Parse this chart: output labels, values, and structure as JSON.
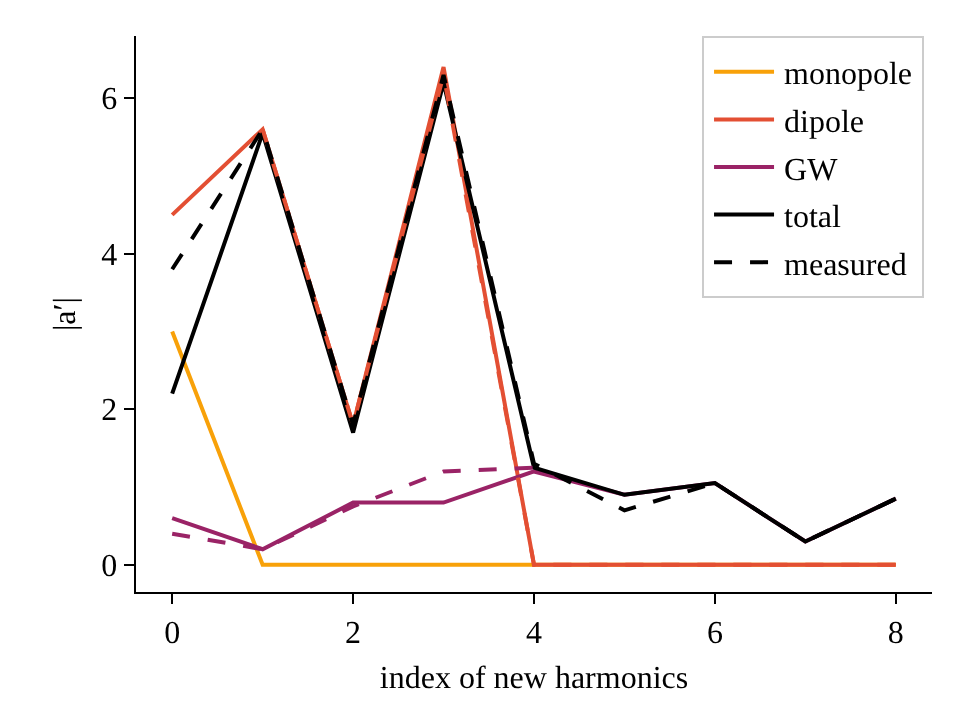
{
  "chart_data": {
    "type": "line",
    "xlabel": "index of new harmonics",
    "ylabel": "|a′|",
    "x": [
      0,
      1,
      2,
      3,
      4,
      5,
      6,
      7,
      8
    ],
    "series": [
      {
        "name": "monopole",
        "color": "#f8a109",
        "values": [
          3.0,
          0,
          0,
          0,
          0,
          0,
          0,
          0,
          0
        ]
      },
      {
        "name": "dipole",
        "color": "#e34f33",
        "values": [
          4.5,
          5.6,
          1.8,
          6.4,
          0,
          0,
          0,
          0,
          0
        ]
      },
      {
        "name": "GW",
        "color": "#9a2366",
        "values": [
          0.6,
          0.2,
          0.8,
          0.8,
          1.2,
          0.9,
          1.05,
          0.3,
          0.85
        ]
      },
      {
        "name": "total",
        "color": "#000000",
        "values": [
          2.2,
          5.55,
          1.7,
          6.2,
          1.25,
          0.9,
          1.05,
          0.3,
          0.85
        ]
      },
      {
        "color": "#e34f33",
        "line_style": "dashed",
        "values": [
          null,
          5.6,
          1.8,
          6.3,
          0,
          0,
          0,
          0,
          0
        ]
      },
      {
        "color": "#9a2366",
        "line_style": "dashed",
        "values": [
          0.4,
          0.2,
          0.75,
          1.2,
          1.25,
          null,
          null,
          null,
          null
        ]
      },
      {
        "name": "measured",
        "color": "#000000",
        "line_style": "dashed",
        "values": [
          3.8,
          5.6,
          1.8,
          6.3,
          1.3,
          0.7,
          1.05,
          0.3,
          0.85
        ]
      }
    ],
    "xlim": [
      -0.4,
      8.4
    ],
    "xticks": [
      0,
      2,
      4,
      6,
      8
    ],
    "ylim": [
      -0.35,
      6.8
    ],
    "yticks": [
      0,
      2,
      4,
      6
    ],
    "grid": false,
    "legend": "top right",
    "marker": "none",
    "line_style": "solid"
  }
}
